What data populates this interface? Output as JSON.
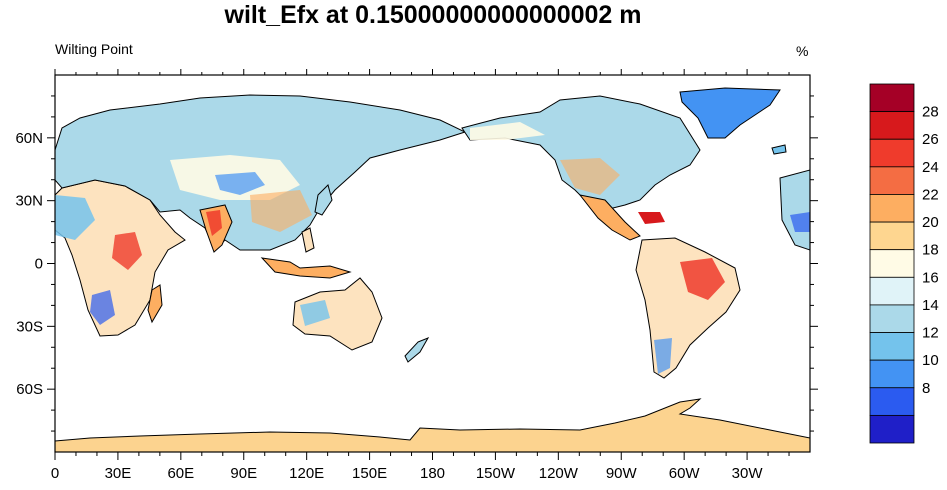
{
  "title": "wilt_Efx at 0.15000000000000002 m",
  "subtitle": "Wilting Point",
  "units": "%",
  "map": {
    "projection": "cylindrical-equidistant",
    "central_longitude": 180,
    "lat_range": [
      -90,
      90
    ],
    "x_ticks": [
      "0",
      "30E",
      "60E",
      "90E",
      "120E",
      "150E",
      "180",
      "150W",
      "120W",
      "90W",
      "60W",
      "30W"
    ],
    "y_ticks": [
      "60N",
      "30N",
      "0",
      "30S",
      "60S"
    ]
  },
  "colorbar": {
    "labels": [
      "28",
      "26",
      "24",
      "22",
      "20",
      "18",
      "16",
      "14",
      "12",
      "10",
      "8"
    ],
    "colors": [
      "#a50026",
      "#d7191c",
      "#ef3b2c",
      "#f46d43",
      "#fdae61",
      "#fed690",
      "#fffbe6",
      "#e0f3f8",
      "#abd9e9",
      "#74c3ec",
      "#4393f3",
      "#2b5bf0",
      "#1f1fc8"
    ]
  },
  "colors": {
    "ocean": "#ffffff",
    "coast": "#000000",
    "antarctica": "#fcd38f"
  }
}
